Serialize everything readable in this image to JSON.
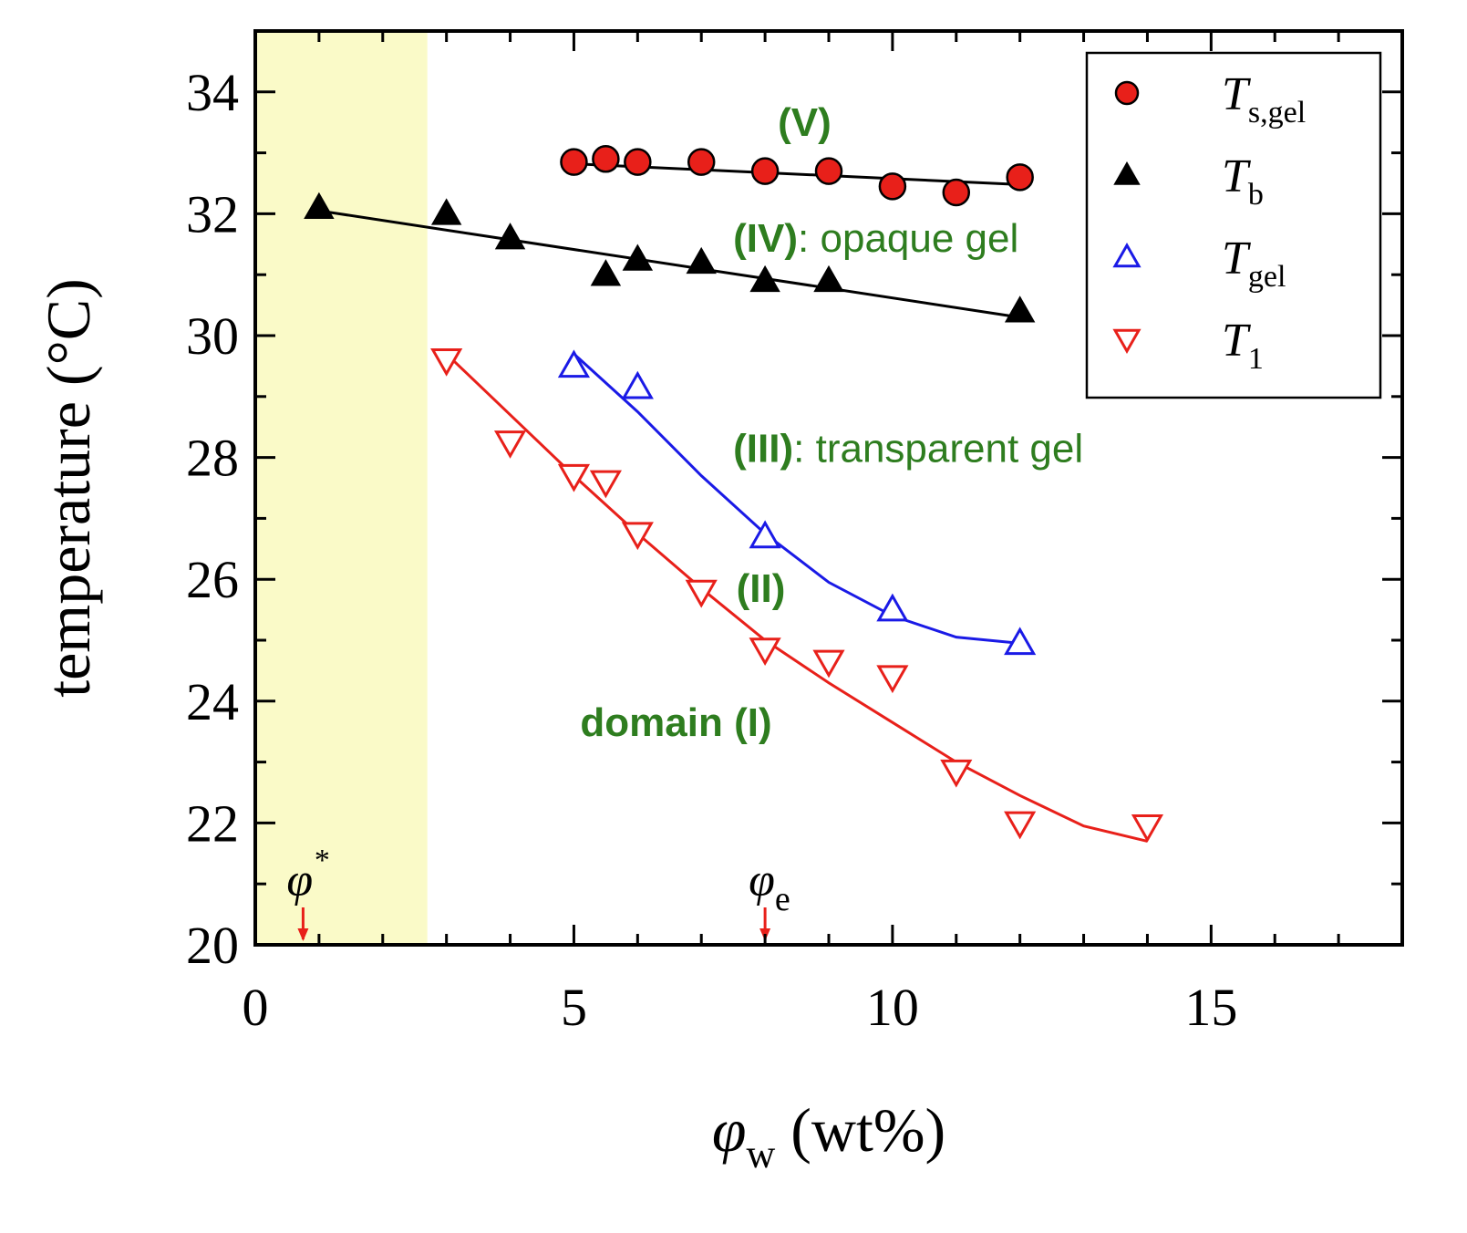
{
  "chart_data": {
    "type": "scatter",
    "title": "",
    "xlabel": {
      "symbol": "φ",
      "sub": "w",
      "unit": "(wt%)"
    },
    "ylabel": "temperature (°C)",
    "xlim": [
      0,
      18
    ],
    "ylim": [
      20,
      35
    ],
    "xticks": [
      0,
      5,
      10,
      15
    ],
    "xtick_labels": [
      "0",
      "5",
      "10",
      "15"
    ],
    "yticks": [
      20,
      22,
      24,
      26,
      28,
      30,
      32,
      34
    ],
    "ytick_labels": [
      "20",
      "22",
      "24",
      "26",
      "28",
      "30",
      "32",
      "34"
    ],
    "shaded_region": {
      "x0": 0,
      "x1": 2.7,
      "color": "#fafac8"
    },
    "series": [
      {
        "name": "T_s,gel",
        "legend_symbol": "T",
        "legend_sub": "s,gel",
        "marker": "circle-filled",
        "color": "#e8201a",
        "x": [
          5,
          5.5,
          6,
          7,
          8,
          9,
          10,
          11,
          12
        ],
        "y": [
          32.85,
          32.9,
          32.85,
          32.85,
          32.7,
          32.7,
          32.45,
          32.35,
          32.6
        ],
        "fit": {
          "x": [
            5,
            12
          ],
          "y": [
            32.82,
            32.48
          ],
          "color": "#000000"
        }
      },
      {
        "name": "T_b",
        "legend_symbol": "T",
        "legend_sub": "b",
        "marker": "triangle-up-filled",
        "color": "#000000",
        "x": [
          1,
          3,
          4,
          5.5,
          6,
          7,
          8,
          9,
          12
        ],
        "y": [
          32.1,
          32.0,
          31.6,
          31.0,
          31.25,
          31.2,
          30.9,
          30.9,
          30.4
        ],
        "fit": {
          "x": [
            1,
            12
          ],
          "y": [
            32.05,
            30.3
          ],
          "color": "#000000"
        }
      },
      {
        "name": "T_gel",
        "legend_symbol": "T",
        "legend_sub": "gel",
        "marker": "triangle-up-open",
        "color": "#1a1ae6",
        "x": [
          5,
          6,
          8,
          10,
          12
        ],
        "y": [
          29.5,
          29.15,
          26.7,
          25.5,
          24.95
        ],
        "fit": {
          "x": [
            5,
            6,
            7,
            8,
            9,
            10,
            11,
            12
          ],
          "y": [
            29.7,
            28.75,
            27.7,
            26.75,
            25.95,
            25.4,
            25.05,
            24.95
          ],
          "color": "#1a1ae6"
        }
      },
      {
        "name": "T_1",
        "legend_symbol": "T",
        "legend_sub": "1",
        "marker": "triangle-down-open",
        "color": "#e8201a",
        "x": [
          3,
          4,
          5,
          5.5,
          6,
          7,
          8,
          9,
          10,
          11,
          12,
          14
        ],
        "y": [
          29.6,
          28.25,
          27.7,
          27.6,
          26.75,
          25.8,
          24.85,
          24.65,
          24.4,
          22.85,
          22.0,
          21.95
        ],
        "fit": {
          "x": [
            3,
            4,
            5,
            6,
            7,
            8,
            9,
            10,
            11,
            12,
            13,
            14
          ],
          "y": [
            29.7,
            28.7,
            27.7,
            26.75,
            25.85,
            25.0,
            24.3,
            23.65,
            23.0,
            22.45,
            21.95,
            21.7
          ],
          "color": "#e8201a"
        }
      }
    ],
    "annotations": [
      {
        "id": "region-v",
        "bold": "(V)",
        "text": "",
        "x": 8.2,
        "y": 33.5
      },
      {
        "id": "region-iv",
        "bold": "(IV)",
        "text": ": opaque gel",
        "x": 7.5,
        "y": 31.6
      },
      {
        "id": "region-iii",
        "bold": "(III)",
        "text": ": transparent gel",
        "x": 7.5,
        "y": 28.15
      },
      {
        "id": "region-ii",
        "bold": "(II)",
        "text": "",
        "x": 7.55,
        "y": 25.85
      },
      {
        "id": "region-i",
        "bold": "domain (I)",
        "text": "",
        "x": 5.1,
        "y": 23.65
      }
    ],
    "markers": [
      {
        "id": "phi-star",
        "symbol": "φ",
        "sup": "*",
        "x": 0.75,
        "color": "#e8201a"
      },
      {
        "id": "phi-e",
        "symbol": "φ",
        "sub": "e",
        "x": 8.0,
        "color": "#e8201a"
      }
    ]
  }
}
